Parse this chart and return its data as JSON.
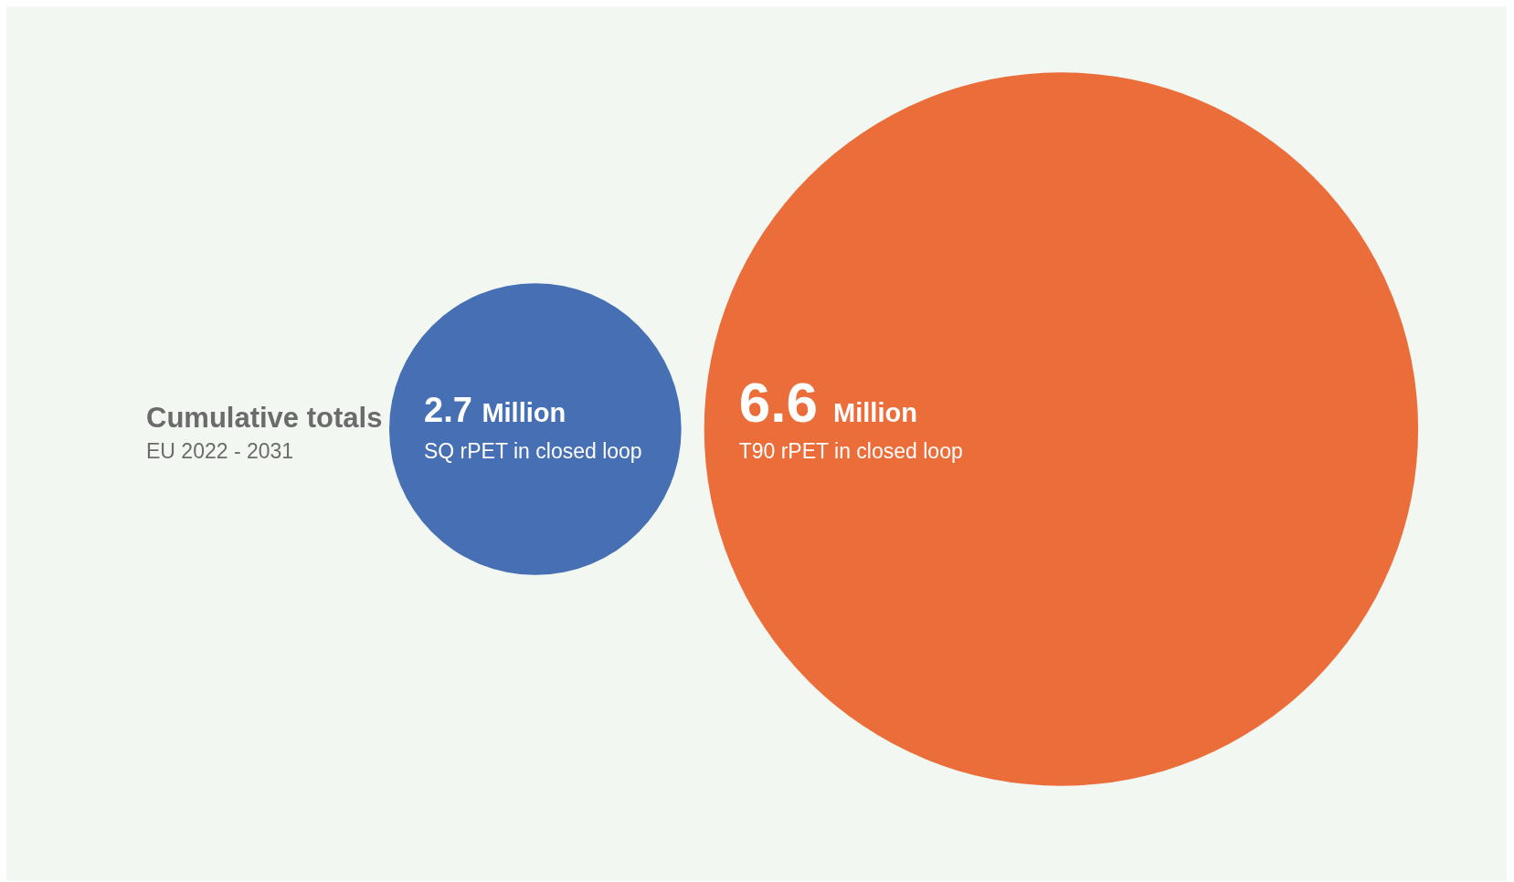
{
  "chart_data": {
    "type": "other",
    "title": "Cumulative totals",
    "subtitle": "EU 2022 - 2031",
    "categories": [
      "SQ rPET in closed loop",
      "T90 rPET in closed loop"
    ],
    "values": [
      2.7,
      6.6
    ],
    "value_labels": [
      "2.7 Million",
      "6.6 Million"
    ],
    "colors": [
      "#466fb4",
      "#eb6d3a"
    ]
  }
}
